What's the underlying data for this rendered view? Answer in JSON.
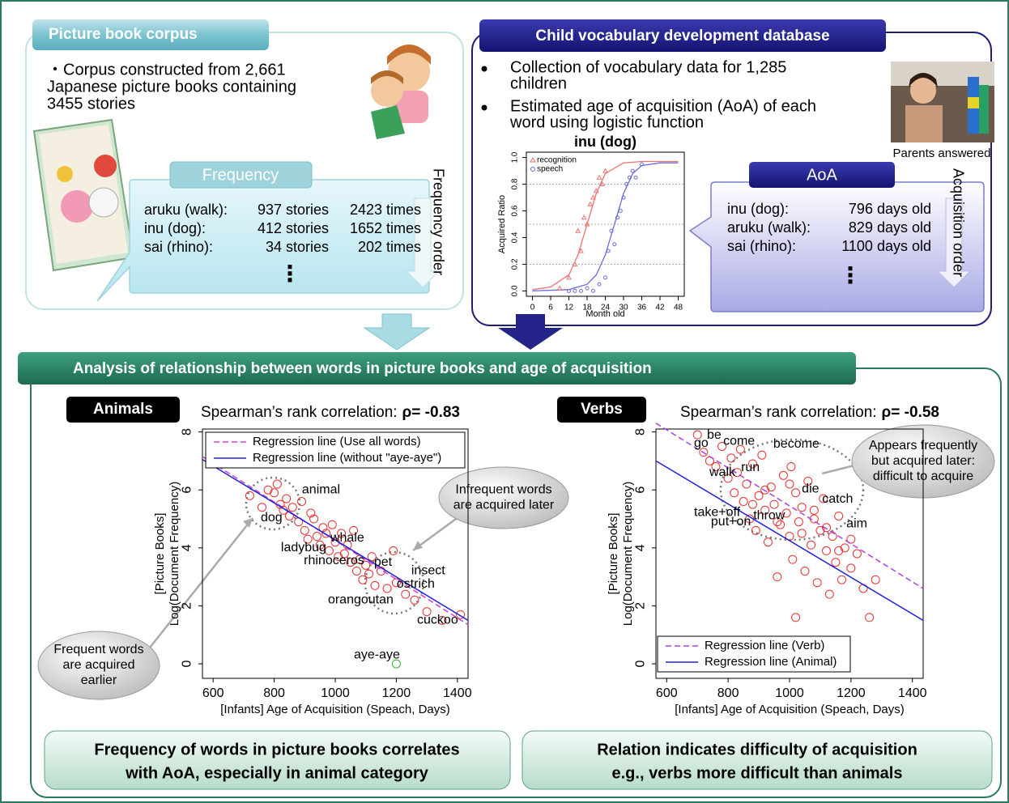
{
  "corpus": {
    "title": "Picture book corpus",
    "lines": [
      "・Corpus constructed from 2,661",
      "Japanese picture books containing",
      "3455 stories"
    ],
    "frequency": {
      "title": "Frequency",
      "rows": [
        [
          "aruku (walk):",
          "937 stories",
          "2423 times"
        ],
        [
          "inu (dog):",
          "412 stories",
          "1652 times"
        ],
        [
          "sai (rhino):",
          "34 stories",
          "202 times"
        ]
      ],
      "more": "⋮",
      "order": "Frequency order"
    }
  },
  "database": {
    "title": "Child vocabulary development database",
    "bullets": [
      [
        "Collection of vocabulary data for 1,285",
        "children"
      ],
      [
        "Estimated age of acquisition (AoA) of each",
        "word using logistic function"
      ]
    ],
    "photo_caption": "Parents answered",
    "aoa": {
      "title": "AoA",
      "rows": [
        [
          "inu (dog):",
          "796 days old"
        ],
        [
          "aruku (walk):",
          "829 days old"
        ],
        [
          "sai (rhino):",
          "1100 days old"
        ]
      ],
      "more": "⋮",
      "order": "Acquisition order"
    }
  },
  "analysis": {
    "title": "Analysis of relationship between words in picture books and age of acquisition",
    "conclusions": [
      [
        "Frequency of words in picture books correlates",
        "with AoA,  especially in animal category"
      ],
      [
        "Relation indicates difficulty of acquisition",
        "e.g., verbs more difficult than animals"
      ]
    ]
  },
  "chart_data": [
    {
      "type": "line",
      "title": "inu (dog)",
      "xlabel": "Month old",
      "ylabel": "Acquired Ratio",
      "xlim": [
        -2,
        50
      ],
      "ylim": [
        -0.04,
        1.04
      ],
      "xticks": [
        0,
        6,
        12,
        18,
        24,
        30,
        36,
        42,
        48
      ],
      "yticks": [
        {
          "value": 0,
          "label": "0.0"
        },
        {
          "value": 0.2,
          "label": "0.2"
        },
        {
          "value": 0.4,
          "label": "0.4"
        },
        {
          "value": 0.6,
          "label": "0.6"
        },
        {
          "value": 0.8,
          "label": "0.8"
        },
        {
          "value": 1,
          "label": "1.0"
        }
      ],
      "reference_lines": [
        0.2,
        0.5,
        0.8
      ],
      "legend": "top-left",
      "series": [
        {
          "name": "recognition",
          "color": "#f07070",
          "marker": "triangle",
          "x": [
            9,
            12,
            14,
            15,
            16,
            17,
            18,
            19,
            20,
            21,
            22,
            23,
            24
          ],
          "values": [
            0.02,
            0.1,
            0.2,
            0.45,
            0.3,
            0.55,
            0.5,
            0.65,
            0.7,
            0.75,
            0.85,
            0.8,
            0.9
          ]
        },
        {
          "name": "speech",
          "color": "#6a6ad8",
          "marker": "circle",
          "x": [
            12,
            14,
            16,
            18,
            20,
            22,
            24,
            25,
            26,
            27,
            28,
            29,
            30,
            31,
            32,
            33,
            34,
            36
          ],
          "values": [
            0,
            0,
            0,
            0.02,
            0,
            0.05,
            0.1,
            0.3,
            0.45,
            0.35,
            0.55,
            0.6,
            0.7,
            0.8,
            0.85,
            0.9,
            0.85,
            0.95
          ]
        }
      ],
      "fits": [
        {
          "color": "#f07070",
          "x": [
            0,
            6,
            12,
            15,
            18,
            21,
            24,
            30,
            36,
            48
          ],
          "values": [
            0.01,
            0.03,
            0.12,
            0.27,
            0.5,
            0.73,
            0.88,
            0.96,
            0.97,
            0.97
          ]
        },
        {
          "color": "#6a6ad8",
          "x": [
            0,
            12,
            18,
            21,
            24,
            27,
            30,
            33,
            36,
            42,
            48
          ],
          "values": [
            0,
            0.01,
            0.05,
            0.12,
            0.27,
            0.5,
            0.73,
            0.88,
            0.94,
            0.96,
            0.96
          ]
        }
      ]
    },
    {
      "type": "scatter",
      "tag": "Animals",
      "title": "Spearman’s rank correlation:",
      "correlation": "ρ= -0.83",
      "xlabel": "[Infants] Age of Acquisition (Speach, Days)",
      "ylabel": [
        "[Picture Books]",
        "Log(Document Frequency)"
      ],
      "xlim": [
        565,
        1435
      ],
      "ylim": [
        -0.5,
        8.1
      ],
      "xticks": [
        600,
        800,
        1000,
        1200,
        1400
      ],
      "yticks": [
        0,
        2,
        4,
        6,
        8
      ],
      "legend": "top",
      "points": [
        {
          "color": "#e83030",
          "x": [
            720,
            760,
            780,
            800,
            810,
            820,
            830,
            840,
            850,
            860,
            880,
            890,
            900,
            910,
            920,
            930,
            940,
            950,
            960,
            970,
            980,
            990,
            1000,
            1010,
            1020,
            1030,
            1040,
            1050,
            1060,
            1070,
            1080,
            1090,
            1100,
            1110,
            1120,
            1130,
            1150,
            1170,
            1190,
            1200,
            1230,
            1260,
            1300,
            1350,
            1410
          ],
          "values": [
            5.8,
            5.4,
            6.0,
            5.9,
            6.2,
            5.5,
            5.3,
            5.7,
            5.1,
            5.4,
            4.9,
            5.6,
            4.6,
            4.3,
            5.2,
            5.0,
            4.4,
            4.1,
            4.7,
            4.5,
            3.9,
            4.8,
            4.2,
            3.7,
            4.5,
            3.8,
            4.1,
            3.5,
            4.6,
            3.2,
            3.6,
            2.9,
            3.4,
            3.1,
            3.7,
            2.7,
            3.2,
            2.6,
            3.9,
            2.8,
            2.4,
            2.2,
            1.8,
            1.5,
            1.7
          ]
        },
        {
          "color": "#30b030",
          "x": [
            1200
          ],
          "values": [
            0
          ]
        }
      ],
      "lines": [
        {
          "name": "Regression line (Use all words)",
          "color": "#d040d0",
          "dashed": true,
          "x": [
            565,
            1435
          ],
          "values": [
            7.15,
            1.35
          ]
        },
        {
          "name": "Regression line (without \"aye-aye\")",
          "color": "#2020e0",
          "dashed": false,
          "x": [
            565,
            1435
          ],
          "values": [
            7.05,
            1.5
          ]
        }
      ],
      "point_labels": [
        {
          "label": "dog",
          "x": 756,
          "y": 5.03
        },
        {
          "label": "animal",
          "x": 891,
          "y": 6.0
        },
        {
          "label": "whale",
          "x": 984,
          "y": 4.33
        },
        {
          "label": "ladybug",
          "x": 822,
          "y": 4.0
        },
        {
          "label": "rhinoceros",
          "x": 897,
          "y": 3.55
        },
        {
          "label": "pet",
          "x": 1127,
          "y": 3.5
        },
        {
          "label": "insect",
          "x": 1249,
          "y": 3.2
        },
        {
          "label": "ostrich",
          "x": 1201,
          "y": 2.74
        },
        {
          "label": "orangoutan",
          "x": 976,
          "y": 2.2
        },
        {
          "label": "cuckoo",
          "x": 1268,
          "y": 1.5
        },
        {
          "label": "aye-aye",
          "x": 1061,
          "y": 0.3
        }
      ],
      "annotations": [
        [
          "Infrequent words",
          "are acquired later"
        ],
        [
          "Frequent  words",
          "are acquired",
          "earlier"
        ]
      ]
    },
    {
      "type": "scatter",
      "tag": "Verbs",
      "title": "Spearman’s rank correlation:",
      "correlation": "ρ= -0.58",
      "xlabel": "[Infants] Age of Acquisition (Speach, Days)",
      "ylabel": [
        "[Picture Books]",
        "Log(Document Frequency)"
      ],
      "xlim": [
        565,
        1435
      ],
      "ylim": [
        -0.5,
        8.1
      ],
      "xticks": [
        600,
        800,
        1000,
        1200,
        1400
      ],
      "yticks": [
        0,
        2,
        4,
        6,
        8
      ],
      "legend": "bottom-left",
      "points": [
        {
          "color": "#e83030",
          "x": [
            700,
            720,
            740,
            760,
            780,
            800,
            810,
            820,
            830,
            840,
            850,
            860,
            870,
            880,
            890,
            900,
            910,
            920,
            930,
            940,
            950,
            960,
            970,
            980,
            990,
            1000,
            1005,
            1010,
            1020,
            1030,
            1040,
            1050,
            1060,
            1070,
            1080,
            1090,
            1100,
            1110,
            1120,
            1130,
            1140,
            1150,
            1160,
            1170,
            1180,
            1200,
            1220,
            1240,
            1260,
            1280,
            880,
            920,
            960,
            1000,
            1040,
            1080,
            1120,
            1160,
            1200,
            1020
          ],
          "values": [
            7.9,
            7.3,
            7.0,
            6.8,
            7.5,
            6.4,
            7.1,
            5.9,
            6.6,
            7.4,
            5.6,
            6.2,
            5.0,
            6.9,
            4.6,
            5.8,
            7.2,
            5.3,
            4.2,
            6.1,
            5.5,
            3.0,
            4.8,
            6.5,
            5.2,
            4.4,
            6.8,
            3.6,
            5.9,
            4.9,
            5.4,
            3.2,
            6.3,
            4.1,
            5.0,
            2.8,
            4.6,
            5.7,
            3.9,
            2.4,
            4.4,
            3.5,
            5.1,
            2.9,
            4.0,
            3.3,
            3.8,
            2.6,
            1.6,
            2.9,
            5.5,
            6.0,
            4.9,
            6.2,
            4.5,
            5.3,
            4.7,
            3.9,
            4.3,
            1.6
          ]
        }
      ],
      "lines": [
        {
          "name": "Regression line (Verb)",
          "color": "#b040e0",
          "dashed": true,
          "x": [
            565,
            1435
          ],
          "values": [
            8.3,
            2.6
          ]
        },
        {
          "name": "Regression line (Animal)",
          "color": "#2020e0",
          "dashed": false,
          "x": [
            565,
            1435
          ],
          "values": [
            7.0,
            1.5
          ]
        }
      ],
      "point_labels": [
        {
          "label": "go",
          "x": 689,
          "y": 7.6
        },
        {
          "label": "be",
          "x": 731,
          "y": 7.88
        },
        {
          "label": "come",
          "x": 784,
          "y": 7.68
        },
        {
          "label": "become",
          "x": 947,
          "y": 7.57
        },
        {
          "label": "walk",
          "x": 739,
          "y": 6.6
        },
        {
          "label": "run",
          "x": 842,
          "y": 6.76
        },
        {
          "label": "die",
          "x": 1040,
          "y": 6.03
        },
        {
          "label": "catch",
          "x": 1106,
          "y": 5.67
        },
        {
          "label": "take+off",
          "x": 689,
          "y": 5.22
        },
        {
          "label": "throw",
          "x": 882,
          "y": 5.11
        },
        {
          "label": "put+on",
          "x": 744,
          "y": 4.89
        },
        {
          "label": "aim",
          "x": 1185,
          "y": 4.83
        }
      ],
      "annotations": [
        [
          "Appears frequently",
          "but acquired later:",
          "difficult to acquire"
        ]
      ]
    }
  ]
}
